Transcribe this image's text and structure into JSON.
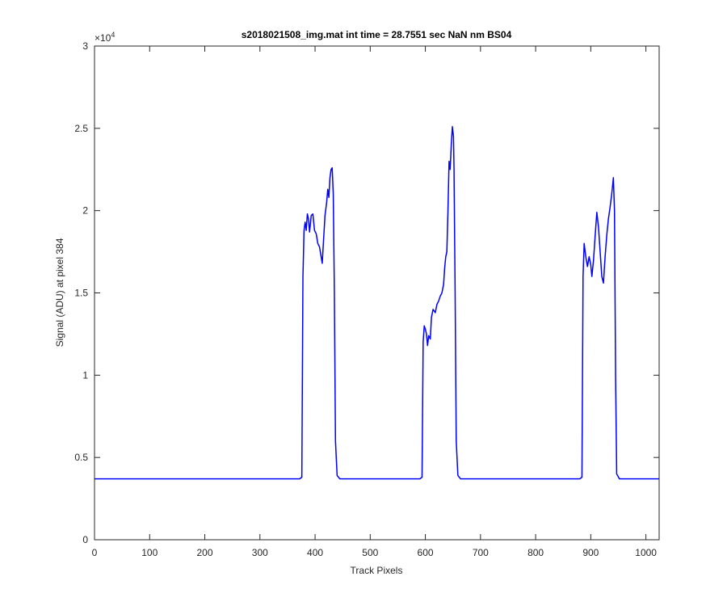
{
  "chart_data": {
    "type": "line",
    "title": "s2018021508_img.mat int time = 28.7551 sec  NaN nm BS04",
    "x_label": "Track Pixels",
    "y_label": "Signal (ADU) at pixel 384",
    "y_multiplier": {
      "base": "×10",
      "exponent": 4
    },
    "color": "#0000ff",
    "xlim": [
      0,
      1024
    ],
    "xticks": [
      0,
      100,
      200,
      300,
      400,
      500,
      600,
      700,
      800,
      900,
      1000
    ],
    "ylim": [
      0,
      3
    ],
    "yticks": [
      0,
      0.5,
      1,
      1.5,
      2,
      2.5,
      3
    ],
    "x": [
      0,
      372,
      376,
      378,
      380,
      382,
      384,
      386,
      388,
      390,
      393,
      396,
      399,
      402,
      405,
      408,
      411,
      413,
      415,
      418,
      421,
      423,
      425,
      427,
      429,
      431,
      433,
      435,
      437,
      440,
      445,
      590,
      594,
      596,
      598,
      600,
      602,
      604,
      606,
      609,
      611,
      614,
      618,
      621,
      624,
      627,
      630,
      633,
      635,
      637,
      639,
      641,
      643,
      645,
      647,
      649,
      651,
      652,
      654,
      656,
      659,
      664,
      880,
      884,
      886,
      888,
      891,
      894,
      897,
      900,
      902,
      905,
      908,
      911,
      914,
      917,
      920,
      923,
      926,
      929,
      932,
      935,
      938,
      941,
      943,
      945,
      947,
      952,
      1024
    ],
    "values": [
      0.37,
      0.37,
      0.38,
      1.6,
      1.88,
      1.93,
      1.88,
      1.98,
      1.95,
      1.87,
      1.97,
      1.98,
      1.88,
      1.86,
      1.8,
      1.78,
      1.72,
      1.68,
      1.8,
      1.97,
      2.05,
      2.13,
      2.08,
      2.2,
      2.25,
      2.26,
      2.1,
      1.5,
      0.6,
      0.39,
      0.37,
      0.37,
      0.38,
      1.2,
      1.3,
      1.28,
      1.25,
      1.18,
      1.24,
      1.22,
      1.35,
      1.4,
      1.38,
      1.43,
      1.45,
      1.48,
      1.5,
      1.55,
      1.65,
      1.72,
      1.75,
      2.0,
      2.3,
      2.25,
      2.4,
      2.51,
      2.45,
      2.25,
      1.5,
      0.6,
      0.39,
      0.37,
      0.37,
      0.38,
      1.6,
      1.8,
      1.72,
      1.66,
      1.72,
      1.67,
      1.6,
      1.7,
      1.85,
      1.99,
      1.9,
      1.75,
      1.6,
      1.56,
      1.72,
      1.85,
      1.95,
      2.02,
      2.1,
      2.2,
      2.0,
      1.0,
      0.4,
      0.37,
      0.37
    ]
  }
}
